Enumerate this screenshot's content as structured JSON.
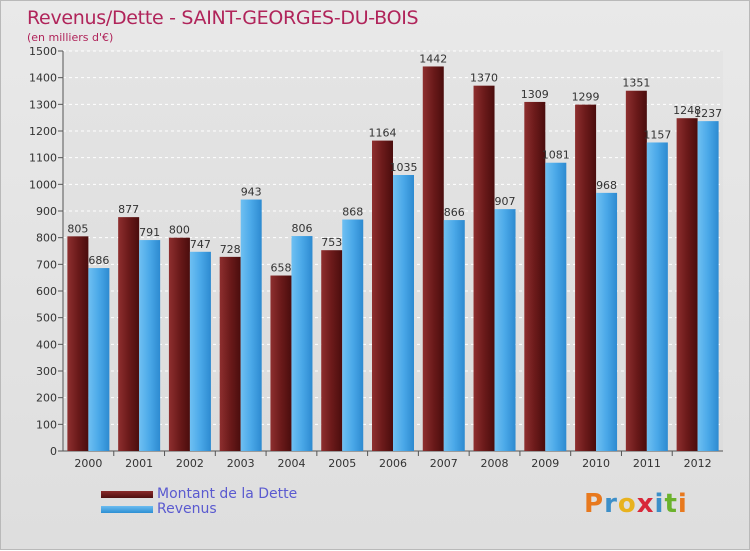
{
  "title": "Revenus/Dette - SAINT-GEORGES-DU-BOIS",
  "subtitle": "(en milliers d'€)",
  "legend": {
    "debt_label": "Montant de la Dette",
    "revenue_label": "Revenus"
  },
  "logo": {
    "letters": [
      "P",
      "r",
      "o",
      "x",
      "i",
      "t",
      "i"
    ],
    "colors": [
      "#e8791e",
      "#3c8fc9",
      "#e8b21e",
      "#d8283a",
      "#3c8fc9",
      "#6bb22c",
      "#e8791e"
    ]
  },
  "colors": {
    "debt": "#6b1a1a",
    "revenue": "#4aa8e8",
    "title": "#b0245a"
  },
  "chart_data": {
    "type": "bar",
    "categories": [
      "2000",
      "2001",
      "2002",
      "2003",
      "2004",
      "2005",
      "2006",
      "2007",
      "2008",
      "2009",
      "2010",
      "2011",
      "2012"
    ],
    "series": [
      {
        "name": "Montant de la Dette",
        "values": [
          805,
          877,
          800,
          728,
          658,
          753,
          1164,
          1442,
          1370,
          1309,
          1299,
          1351,
          1248
        ]
      },
      {
        "name": "Revenus",
        "values": [
          686,
          791,
          747,
          943,
          806,
          868,
          1035,
          866,
          907,
          1081,
          968,
          1157,
          1237
        ]
      }
    ],
    "ylim": [
      0,
      1500
    ],
    "yticks": [
      0,
      100,
      200,
      300,
      400,
      500,
      600,
      700,
      800,
      900,
      1000,
      1100,
      1200,
      1300,
      1400,
      1500
    ],
    "grid": true
  }
}
